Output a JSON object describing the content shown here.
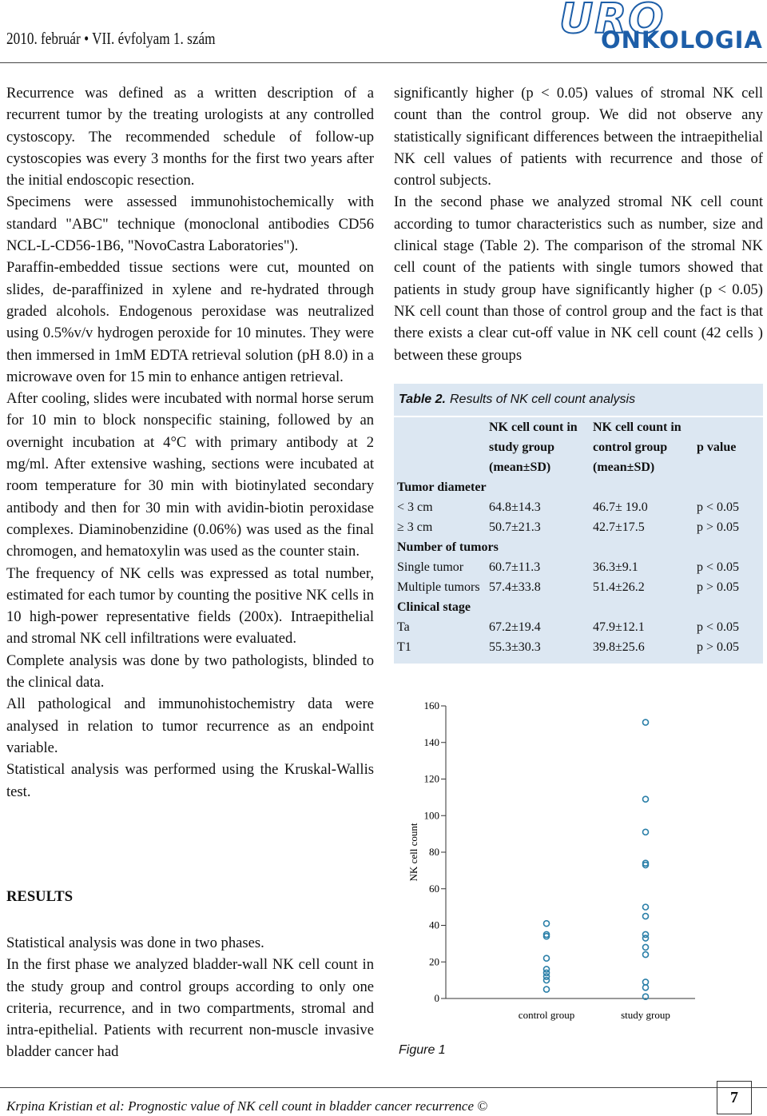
{
  "header": {
    "issue": "2010. február • VII. évfolyam 1. szám",
    "logo_top": "URO",
    "logo_bottom": "ONKOLOGIA"
  },
  "left_column": {
    "paragraphs": [
      "Recurrence was defined as a written description of a recurrent tumor by the treating urologists at any controlled cystoscopy. The recommended schedule of follow-up cystoscopies was every 3 months for the first two years after the initial endoscopic resection.",
      "Specimens were assessed immunohistochemically with standard \"ABC\" technique (monoclonal antibodies CD56 NCL-L-CD56-1B6, \"NovoCastra Laboratories\").",
      "Paraffin-embedded tissue sections were cut, mounted on slides, de-paraffinized in xylene and re-hydrated through graded alcohols. Endogenous peroxidase was neutralized using 0.5%v/v hydrogen peroxide for 10 minutes. They were then immersed in 1mM EDTA retrieval solution (pH 8.0) in a microwave oven for 15 min to enhance antigen retrieval.",
      "After cooling, slides were incubated with normal horse serum for 10 min to block nonspecific staining, followed by an overnight incubation at 4°C with primary antibody at 2 mg/ml. After extensive washing, sections were incubated at room temperature for 30 min with biotinylated secondary antibody and then for 30 min with avidin-biotin peroxidase complexes. Diaminobenzidine (0.06%) was used as the final chromogen, and hematoxylin was used as the counter stain.",
      "The frequency of NK cells was expressed as total number, estimated for each tumor by counting the positive NK cells in 10 high-power representative fields (200x). Intraepithelial and stromal NK cell infiltrations were evaluated.",
      "Complete analysis was done by two pathologists, blinded to the clinical data.",
      "All pathological and immunohistochemistry data were analysed in relation to tumor recurrence as an endpoint variable.",
      "Statistical analysis was performed using the Kruskal-Wallis test."
    ],
    "heading": "RESULTS",
    "paragraphs_after": [
      "Statistical analysis was done in two phases.",
      "In the first phase we analyzed bladder-wall NK cell count in the study group and control groups according to only one criteria, recurrence, and in two compartments, stromal and intra-epithelial. Patients with recurrent non-muscle invasive bladder cancer had"
    ]
  },
  "right_column": {
    "paragraphs": [
      "significantly higher (p < 0.05) values of stromal NK cell count than the control group. We did not observe any statistically significant differences between the intraepithelial NK cell values of patients with recurrence and those of control subjects.",
      "In the second phase we analyzed stromal NK cell count according to tumor characteristics such as number, size and clinical stage (Table 2). The comparison of the stromal NK cell count of the patients with single tumors showed that patients in study group have significantly higher (p < 0.05) NK cell count than those of control group and the fact is that there exists a clear cut-off value in NK cell count (42 cells ) between these groups"
    ]
  },
  "table": {
    "label": "Table 2.",
    "caption": "Results of NK cell count analysis",
    "header": [
      "NK cell count in study group (mean±SD)",
      "NK cell count in control group (mean±SD)",
      "p value"
    ],
    "sections": [
      {
        "title": "Tumor diameter",
        "rows": [
          [
            "< 3 cm",
            "64.8±14.3",
            "46.7± 19.0",
            "p < 0.05"
          ],
          [
            "≥ 3 cm",
            "50.7±21.3",
            "42.7±17.5",
            "p > 0.05"
          ]
        ]
      },
      {
        "title": "Number of tumors",
        "rows": [
          [
            "Single tumor",
            "60.7±11.3",
            "36.3±9.1",
            "p < 0.05"
          ],
          [
            "Multiple tumors",
            "57.4±33.8",
            "51.4±26.2",
            "p > 0.05"
          ]
        ]
      },
      {
        "title": "Clinical stage",
        "rows": [
          [
            "Ta",
            "67.2±19.4",
            "47.9±12.1",
            "p < 0.05"
          ],
          [
            "T1",
            "55.3±30.3",
            "39.8±25.6",
            "p > 0.05"
          ]
        ]
      }
    ]
  },
  "chart_data": {
    "type": "strip",
    "y_label": "NK cell count",
    "categories": [
      "control group",
      "study group"
    ],
    "values": [
      [
        41,
        35,
        34,
        22,
        16,
        14,
        12,
        10,
        5
      ],
      [
        151,
        109,
        91,
        74,
        73,
        50,
        45,
        35,
        33,
        28,
        24,
        9,
        6,
        1
      ]
    ],
    "color": "#2a7fa8",
    "ylim": [
      0,
      160
    ],
    "yticks": [
      0,
      20,
      40,
      60,
      80,
      100,
      120,
      140,
      160
    ]
  },
  "figure_caption": "Figure 1",
  "footer": {
    "citation": "Krpina Kristian et al: Prognostic value of NK cell count in bladder cancer recurrence ©",
    "page": "7"
  }
}
